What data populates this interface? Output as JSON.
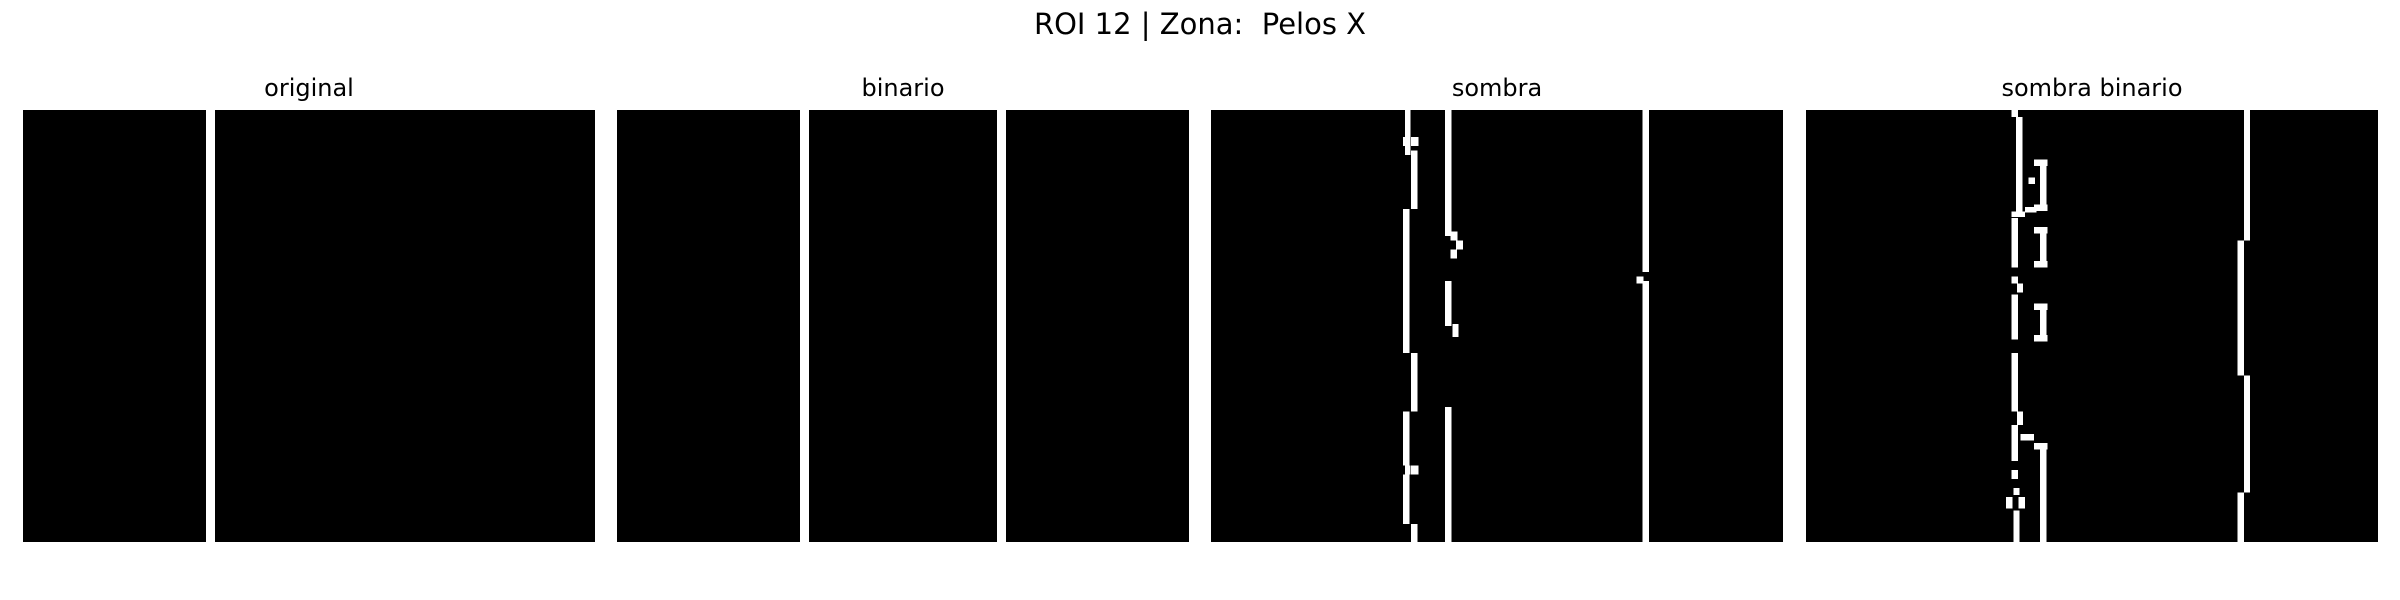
{
  "figure": {
    "suptitle": "ROI 12 | Zona:  Pelos X",
    "colors": {
      "background": "#000000",
      "foreground": "#ffffff"
    },
    "panels": [
      {
        "id": "original",
        "title": "original"
      },
      {
        "id": "binario",
        "title": "binario"
      },
      {
        "id": "sombra",
        "title": "sombra"
      },
      {
        "id": "sombra_binario",
        "title": "sombra binario"
      }
    ]
  }
}
